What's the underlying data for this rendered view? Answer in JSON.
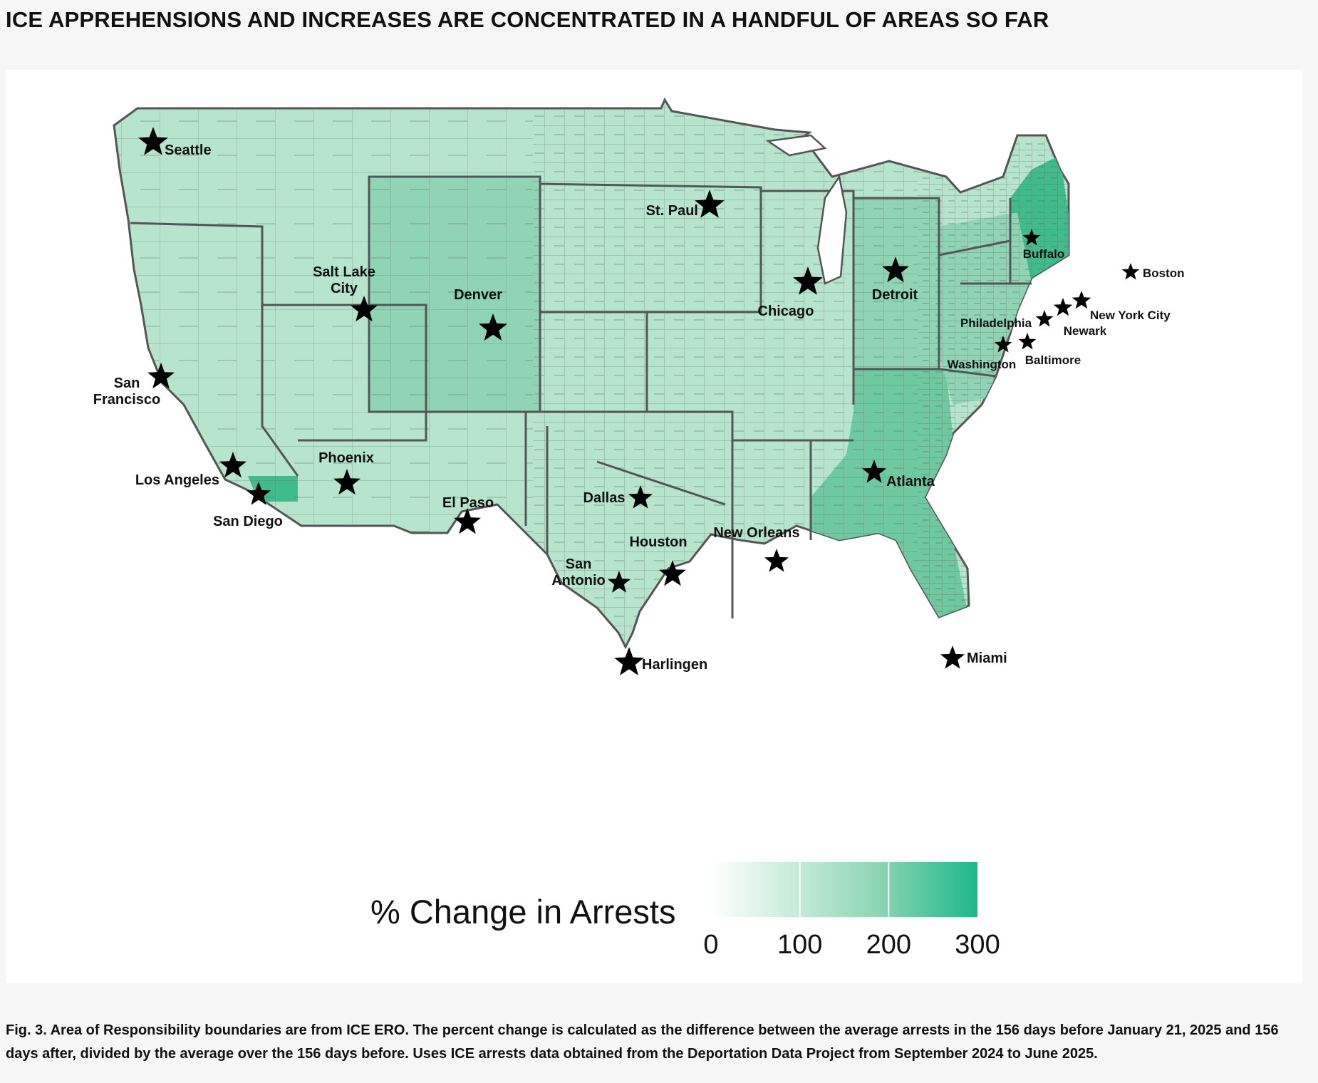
{
  "headline": "ICE APPREHENSIONS AND INCREASES ARE CONCENTRATED IN A HANDFUL OF AREAS SO FAR",
  "caption": "Fig. 3. Area of Responsibility boundaries are from ICE ERO. The percent change is calculated as the difference between the average arrests in the 156 days before January 21, 2025 and 156 days after, divided by the average over the 156 days before. Uses ICE arrests data obtained from the Deportation Data Project from September 2024 to June 2025.",
  "legend": {
    "title": "% Change in Arrests",
    "min": 0,
    "max": 300,
    "ticks": [
      "0",
      "100",
      "200",
      "300"
    ],
    "color_low": "#ffffff",
    "color_high": "#1db88a"
  },
  "colors": {
    "base": "#b6e4cd",
    "mid": "#8fd4b5",
    "high": "#6fc9a0",
    "highest": "#3fbb8c",
    "border": "#555555"
  },
  "cities": [
    {
      "name": "Seattle"
    },
    {
      "name": "St. Paul"
    },
    {
      "name": "Salt Lake City"
    },
    {
      "name": "Denver"
    },
    {
      "name": "Chicago"
    },
    {
      "name": "Detroit"
    },
    {
      "name": "Buffalo"
    },
    {
      "name": "Boston"
    },
    {
      "name": "New York City"
    },
    {
      "name": "Philadelphia"
    },
    {
      "name": "Newark"
    },
    {
      "name": "Washington"
    },
    {
      "name": "Baltimore"
    },
    {
      "name": "San Francisco"
    },
    {
      "name": "Los Angeles"
    },
    {
      "name": "San Diego"
    },
    {
      "name": "Phoenix"
    },
    {
      "name": "El Paso"
    },
    {
      "name": "Dallas"
    },
    {
      "name": "Houston"
    },
    {
      "name": "San Antonio"
    },
    {
      "name": "New Orleans"
    },
    {
      "name": "Atlanta"
    },
    {
      "name": "Harlingen"
    },
    {
      "name": "Miami"
    }
  ]
}
